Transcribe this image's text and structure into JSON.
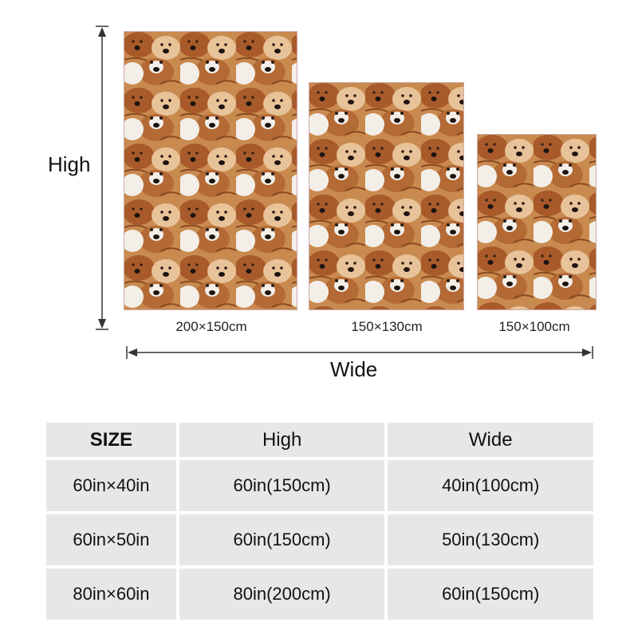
{
  "labels": {
    "high": "High",
    "wide": "Wide"
  },
  "blankets": [
    {
      "size_label": "200×150cm",
      "image": "dog-collage-pattern"
    },
    {
      "size_label": "150×130cm",
      "image": "dog-collage-pattern"
    },
    {
      "size_label": "150×100cm",
      "image": "dog-collage-pattern"
    }
  ],
  "table": {
    "headers": [
      "SIZE",
      "High",
      "Wide"
    ],
    "rows": [
      [
        "60in×40in",
        "60in(150cm)",
        "40in(100cm)"
      ],
      [
        "60in×50in",
        "60in(150cm)",
        "50in(130cm)"
      ],
      [
        "80in×60in",
        "80in(200cm)",
        "60in(150cm)"
      ]
    ]
  },
  "colors": {
    "fur_dark": "#a85a2a",
    "fur_mid": "#c98a4f",
    "fur_light": "#e8c39a",
    "fur_white": "#f4eee8",
    "cell_bg": "#e7e7e7"
  }
}
